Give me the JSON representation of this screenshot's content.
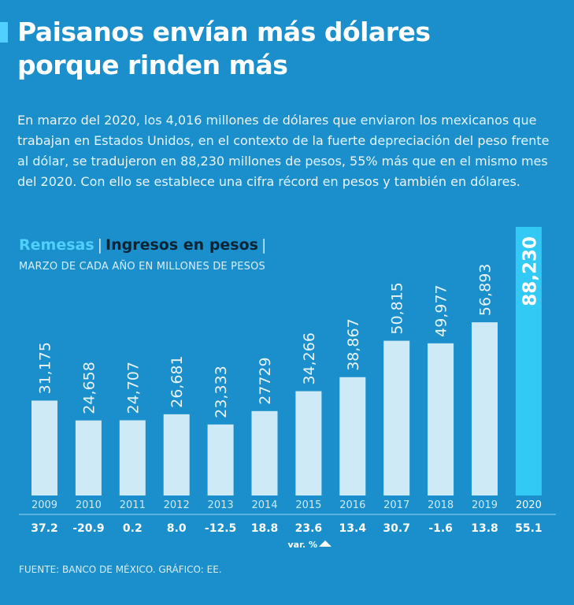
{
  "header": {
    "title_line1": "Paisanos envían más dólares",
    "title_line2": "porque rinden más",
    "intro": "En marzo del 2020, los 4,016 millones de dólares que enviaron los mexicanos que trabajan en Estados Unidos, en el contexto de la fuerte depreciación del peso frente al dólar, se tradujeron en 88,230 millones de pesos, 55% más que en el mismo mes del 2020. Con ello se establece una cifra récord en pesos y también en dólares."
  },
  "legend": {
    "remesas": "Remesas",
    "ingresos": "Ingresos en pesos"
  },
  "footer": {
    "source": "FUENTE: BANCO DE MÉXICO.  GRÁFICO: EE."
  },
  "colors": {
    "background": "#1a8fcc",
    "bar": "#cfeaf7",
    "bar_highlight": "#33c9f5",
    "accent": "#4fd0ff"
  },
  "chart_data": {
    "type": "bar",
    "subtitle": "MARZO DE CADA AÑO EN MILLONES DE PESOS",
    "categories": [
      "2009",
      "2010",
      "2011",
      "2012",
      "2013",
      "2014",
      "2015",
      "2016",
      "2017",
      "2018",
      "2019",
      "2020"
    ],
    "values": [
      31175,
      24658,
      24707,
      26681,
      23333,
      27729,
      34266,
      38867,
      50815,
      49977,
      56893,
      88230
    ],
    "value_labels": [
      "31,175",
      "24,658",
      "24,707",
      "26,681",
      "23,333",
      "27729",
      "34,266",
      "38,867",
      "50,815",
      "49,977",
      "56,893",
      "88,230"
    ],
    "variation": [
      "37.2",
      "-20.9",
      "0.2",
      "8.0",
      "-12.5",
      "18.8",
      "23.6",
      "13.4",
      "30.7",
      "-1.6",
      "13.8",
      "55.1"
    ],
    "variation_label": "var. %",
    "highlight_index": 11,
    "ylim": [
      0,
      88230
    ],
    "xlabel": "",
    "ylabel": ""
  }
}
